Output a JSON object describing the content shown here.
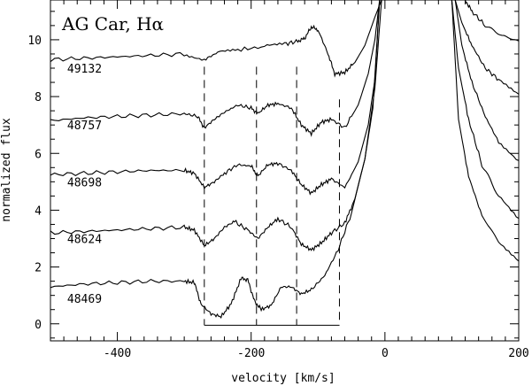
{
  "chart_data": {
    "type": "line",
    "title": "AG Car, Hα",
    "xlabel": "velocity [km/s]",
    "ylabel": "normalized flux",
    "xlim": [
      -500,
      200
    ],
    "ylim": [
      -0.6,
      11.4
    ],
    "x_ticks": [
      -400,
      -200,
      0,
      200
    ],
    "y_ticks": [
      0,
      2,
      4,
      6,
      8,
      10
    ],
    "grid": false,
    "series": [
      {
        "name": "49132",
        "label_pos": [
          -475,
          9.0
        ],
        "points": [
          [
            -500,
            9.3
          ],
          [
            -450,
            9.35
          ],
          [
            -400,
            9.4
          ],
          [
            -350,
            9.45
          ],
          [
            -300,
            9.5
          ],
          [
            -270,
            9.3
          ],
          [
            -250,
            9.55
          ],
          [
            -220,
            9.65
          ],
          [
            -180,
            9.75
          ],
          [
            -150,
            9.85
          ],
          [
            -130,
            9.95
          ],
          [
            -120,
            10.05
          ],
          [
            -110,
            10.45
          ],
          [
            -100,
            10.35
          ],
          [
            -85,
            9.5
          ],
          [
            -75,
            8.8
          ],
          [
            -60,
            8.85
          ],
          [
            -45,
            9.2
          ],
          [
            -30,
            9.8
          ],
          [
            -15,
            10.8
          ],
          [
            -5,
            11.4
          ],
          [
            120,
            11.4
          ],
          [
            130,
            11.0
          ],
          [
            150,
            10.5
          ],
          [
            175,
            10.15
          ],
          [
            200,
            9.95
          ]
        ]
      },
      {
        "name": "48757",
        "label_pos": [
          -475,
          7.0
        ],
        "points": [
          [
            -500,
            7.15
          ],
          [
            -450,
            7.25
          ],
          [
            -400,
            7.3
          ],
          [
            -350,
            7.35
          ],
          [
            -300,
            7.4
          ],
          [
            -280,
            7.3
          ],
          [
            -270,
            6.9
          ],
          [
            -255,
            7.2
          ],
          [
            -240,
            7.45
          ],
          [
            -220,
            7.7
          ],
          [
            -200,
            7.6
          ],
          [
            -190,
            7.4
          ],
          [
            -175,
            7.7
          ],
          [
            -160,
            7.75
          ],
          [
            -140,
            7.6
          ],
          [
            -125,
            7.0
          ],
          [
            -110,
            6.7
          ],
          [
            -95,
            7.1
          ],
          [
            -80,
            7.2
          ],
          [
            -60,
            6.9
          ],
          [
            -40,
            7.7
          ],
          [
            -25,
            8.8
          ],
          [
            -15,
            10.0
          ],
          [
            -8,
            11.4
          ],
          [
            105,
            11.4
          ],
          [
            115,
            10.6
          ],
          [
            130,
            9.8
          ],
          [
            150,
            9.0
          ],
          [
            170,
            8.6
          ],
          [
            200,
            8.1
          ]
        ]
      },
      {
        "name": "48698",
        "label_pos": [
          -475,
          5.0
        ],
        "points": [
          [
            -500,
            5.25
          ],
          [
            -450,
            5.3
          ],
          [
            -400,
            5.35
          ],
          [
            -350,
            5.4
          ],
          [
            -300,
            5.4
          ],
          [
            -285,
            5.3
          ],
          [
            -270,
            4.8
          ],
          [
            -255,
            5.0
          ],
          [
            -240,
            5.3
          ],
          [
            -220,
            5.6
          ],
          [
            -200,
            5.55
          ],
          [
            -190,
            5.2
          ],
          [
            -175,
            5.6
          ],
          [
            -160,
            5.65
          ],
          [
            -140,
            5.4
          ],
          [
            -125,
            4.9
          ],
          [
            -110,
            4.6
          ],
          [
            -95,
            4.9
          ],
          [
            -80,
            5.1
          ],
          [
            -60,
            4.8
          ],
          [
            -40,
            5.7
          ],
          [
            -25,
            7.0
          ],
          [
            -15,
            8.6
          ],
          [
            -8,
            11.4
          ],
          [
            105,
            11.4
          ],
          [
            115,
            9.8
          ],
          [
            130,
            8.5
          ],
          [
            150,
            7.3
          ],
          [
            170,
            6.4
          ],
          [
            200,
            5.7
          ]
        ]
      },
      {
        "name": "48624",
        "label_pos": [
          -475,
          3.0
        ],
        "points": [
          [
            -500,
            3.2
          ],
          [
            -450,
            3.25
          ],
          [
            -400,
            3.3
          ],
          [
            -350,
            3.35
          ],
          [
            -300,
            3.4
          ],
          [
            -285,
            3.3
          ],
          [
            -270,
            2.75
          ],
          [
            -255,
            3.0
          ],
          [
            -240,
            3.4
          ],
          [
            -225,
            3.6
          ],
          [
            -205,
            3.3
          ],
          [
            -190,
            3.0
          ],
          [
            -175,
            3.4
          ],
          [
            -160,
            3.7
          ],
          [
            -140,
            3.4
          ],
          [
            -125,
            2.8
          ],
          [
            -110,
            2.6
          ],
          [
            -95,
            2.85
          ],
          [
            -80,
            3.2
          ],
          [
            -60,
            3.55
          ],
          [
            -45,
            4.4
          ],
          [
            -30,
            5.8
          ],
          [
            -18,
            7.6
          ],
          [
            -8,
            11.4
          ],
          [
            100,
            11.4
          ],
          [
            110,
            9.0
          ],
          [
            125,
            7.2
          ],
          [
            145,
            5.6
          ],
          [
            170,
            4.5
          ],
          [
            200,
            3.7
          ]
        ]
      },
      {
        "name": "48469",
        "label_pos": [
          -475,
          0.9
        ],
        "points": [
          [
            -500,
            1.3
          ],
          [
            -450,
            1.4
          ],
          [
            -400,
            1.45
          ],
          [
            -350,
            1.5
          ],
          [
            -300,
            1.5
          ],
          [
            -285,
            1.45
          ],
          [
            -275,
            0.7
          ],
          [
            -260,
            0.35
          ],
          [
            -245,
            0.25
          ],
          [
            -230,
            0.7
          ],
          [
            -215,
            1.6
          ],
          [
            -205,
            1.55
          ],
          [
            -195,
            0.8
          ],
          [
            -185,
            0.5
          ],
          [
            -170,
            0.65
          ],
          [
            -155,
            1.3
          ],
          [
            -140,
            1.3
          ],
          [
            -125,
            1.05
          ],
          [
            -110,
            1.2
          ],
          [
            -90,
            1.7
          ],
          [
            -70,
            2.6
          ],
          [
            -50,
            3.9
          ],
          [
            -30,
            5.8
          ],
          [
            -15,
            8.3
          ],
          [
            -5,
            11.4
          ],
          [
            100,
            11.4
          ],
          [
            110,
            7.2
          ],
          [
            125,
            5.2
          ],
          [
            145,
            3.8
          ],
          [
            170,
            2.9
          ],
          [
            200,
            2.2
          ]
        ]
      }
    ],
    "reference_velocities": [
      -270,
      -192,
      -132,
      -68
    ],
    "reference_line_tops": [
      9.05,
      9.05,
      9.05,
      7.9
    ],
    "baseline_y": -0.05
  }
}
